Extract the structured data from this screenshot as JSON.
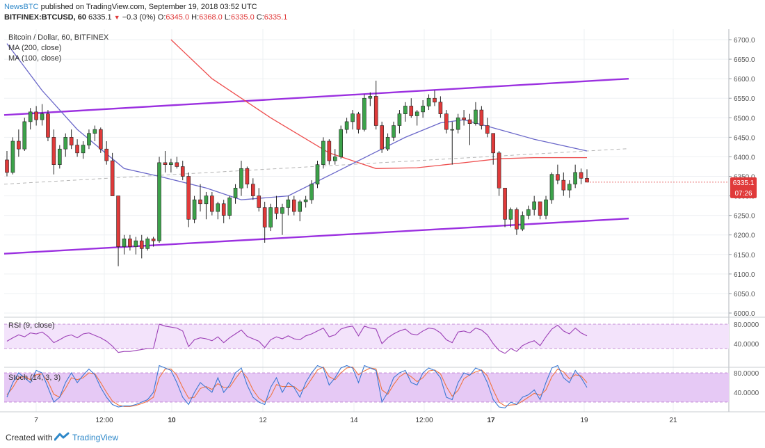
{
  "header": {
    "publisher": "NewsBTC",
    "published_text": "published on TradingView.com, September 19, 2018 03:52 UTC",
    "symbol": "BITFINEX:BTCUSD, 60",
    "last": "6335.1",
    "change": "−0.3 (0%)",
    "o_label": "O:",
    "o_value": "6345.0",
    "h_label": "H:",
    "h_value": "6368.0",
    "l_label": "L:",
    "l_value": "6335.0",
    "c_label": "C:",
    "c_value": "6335.1"
  },
  "legend": {
    "title": "Bitcoin / Dollar, 60, BITFINEX",
    "ma200": "MA (200, close)",
    "ma100": "MA (100, close)"
  },
  "price_badge": {
    "value": "6335.1",
    "timer": "07:26",
    "color": "#e03a3a"
  },
  "rsi_label": "RSI (9, close)",
  "stoch_label": "Stoch (14, 3, 3)",
  "footer": {
    "made": "Created with",
    "brand": "TradingView"
  },
  "colors": {
    "channel": "#9b30e0",
    "ma200": "#ee4d4d",
    "ma100": "#6a67c9",
    "up": "#3ca24a",
    "down": "#e03a3a",
    "rsi": "#9c3fb6",
    "stoch_k": "#3a78d3",
    "stoch_d": "#f07340"
  },
  "chart_data": {
    "type": "candlestick",
    "price_axis": {
      "ticks": [
        6000,
        6050,
        6100,
        6150,
        6200,
        6250,
        6300,
        6350,
        6400,
        6450,
        6500,
        6550,
        6600,
        6650,
        6700
      ],
      "labels": [
        "6000.0",
        "6050.0",
        "6100.0",
        "6150.0",
        "6200.0",
        "6250.0",
        "6300.0",
        "6350.0",
        "6400.0",
        "6450.0",
        "6500.0",
        "6550.0",
        "6600.0",
        "6650.0",
        "6700.0"
      ]
    },
    "time_axis": {
      "labels": [
        "7",
        "12:00",
        "10",
        "12",
        "14",
        "12:00",
        "17",
        "19",
        "21"
      ],
      "bold": [
        "10",
        "17"
      ]
    },
    "candles_ohlc": [
      [
        6392,
        6415,
        6350,
        6360
      ],
      [
        6360,
        6450,
        6355,
        6440
      ],
      [
        6440,
        6470,
        6400,
        6420
      ],
      [
        6420,
        6500,
        6415,
        6490
      ],
      [
        6490,
        6525,
        6470,
        6515
      ],
      [
        6515,
        6530,
        6480,
        6495
      ],
      [
        6495,
        6535,
        6480,
        6510
      ],
      [
        6510,
        6520,
        6440,
        6450
      ],
      [
        6450,
        6470,
        6355,
        6380
      ],
      [
        6380,
        6430,
        6370,
        6420
      ],
      [
        6420,
        6460,
        6400,
        6450
      ],
      [
        6450,
        6470,
        6420,
        6430
      ],
      [
        6430,
        6445,
        6400,
        6410
      ],
      [
        6410,
        6440,
        6395,
        6430
      ],
      [
        6430,
        6470,
        6420,
        6460
      ],
      [
        6460,
        6480,
        6440,
        6470
      ],
      [
        6470,
        6475,
        6410,
        6420
      ],
      [
        6420,
        6440,
        6380,
        6390
      ],
      [
        6390,
        6410,
        6330,
        6300
      ],
      [
        6300,
        6290,
        6120,
        6170
      ],
      [
        6170,
        6200,
        6150,
        6190
      ],
      [
        6190,
        6200,
        6160,
        6170
      ],
      [
        6170,
        6195,
        6150,
        6185
      ],
      [
        6185,
        6200,
        6140,
        6165
      ],
      [
        6165,
        6195,
        6160,
        6190
      ],
      [
        6190,
        6195,
        6170,
        6185
      ],
      [
        6185,
        6400,
        6180,
        6385
      ],
      [
        6385,
        6415,
        6360,
        6380
      ],
      [
        6380,
        6395,
        6360,
        6385
      ],
      [
        6385,
        6400,
        6370,
        6375
      ],
      [
        6375,
        6390,
        6340,
        6350
      ],
      [
        6350,
        6360,
        6220,
        6240
      ],
      [
        6240,
        6300,
        6230,
        6290
      ],
      [
        6290,
        6330,
        6260,
        6280
      ],
      [
        6280,
        6310,
        6240,
        6300
      ],
      [
        6300,
        6310,
        6250,
        6260
      ],
      [
        6260,
        6285,
        6240,
        6280
      ],
      [
        6280,
        6290,
        6230,
        6250
      ],
      [
        6250,
        6300,
        6240,
        6295
      ],
      [
        6295,
        6330,
        6280,
        6320
      ],
      [
        6320,
        6390,
        6300,
        6370
      ],
      [
        6370,
        6375,
        6320,
        6330
      ],
      [
        6330,
        6345,
        6290,
        6300
      ],
      [
        6300,
        6320,
        6260,
        6270
      ],
      [
        6270,
        6285,
        6180,
        6220
      ],
      [
        6220,
        6280,
        6210,
        6270
      ],
      [
        6270,
        6300,
        6240,
        6255
      ],
      [
        6255,
        6280,
        6200,
        6270
      ],
      [
        6270,
        6300,
        6250,
        6290
      ],
      [
        6290,
        6300,
        6250,
        6260
      ],
      [
        6260,
        6290,
        6235,
        6285
      ],
      [
        6285,
        6300,
        6270,
        6290
      ],
      [
        6290,
        6340,
        6280,
        6330
      ],
      [
        6330,
        6390,
        6320,
        6380
      ],
      [
        6380,
        6450,
        6370,
        6440
      ],
      [
        6440,
        6445,
        6380,
        6390
      ],
      [
        6390,
        6420,
        6380,
        6400
      ],
      [
        6400,
        6480,
        6395,
        6470
      ],
      [
        6470,
        6500,
        6460,
        6490
      ],
      [
        6490,
        6520,
        6470,
        6510
      ],
      [
        6510,
        6515,
        6460,
        6470
      ],
      [
        6470,
        6560,
        6465,
        6550
      ],
      [
        6550,
        6565,
        6530,
        6555
      ],
      [
        6555,
        6595,
        6470,
        6480
      ],
      [
        6480,
        6490,
        6410,
        6420
      ],
      [
        6420,
        6460,
        6415,
        6450
      ],
      [
        6450,
        6490,
        6440,
        6480
      ],
      [
        6480,
        6520,
        6460,
        6510
      ],
      [
        6510,
        6540,
        6490,
        6530
      ],
      [
        6530,
        6550,
        6500,
        6505
      ],
      [
        6505,
        6520,
        6480,
        6515
      ],
      [
        6515,
        6545,
        6500,
        6530
      ],
      [
        6530,
        6560,
        6520,
        6550
      ],
      [
        6550,
        6570,
        6530,
        6540
      ],
      [
        6540,
        6555,
        6500,
        6510
      ],
      [
        6510,
        6520,
        6460,
        6470
      ],
      [
        6470,
        6490,
        6380,
        6470
      ],
      [
        6470,
        6510,
        6460,
        6500
      ],
      [
        6500,
        6520,
        6480,
        6495
      ],
      [
        6495,
        6510,
        6430,
        6485
      ],
      [
        6485,
        6540,
        6480,
        6520
      ],
      [
        6520,
        6530,
        6470,
        6480
      ],
      [
        6480,
        6500,
        6450,
        6460
      ],
      [
        6460,
        6450,
        6380,
        6410
      ],
      [
        6410,
        6415,
        6300,
        6320
      ],
      [
        6320,
        6310,
        6220,
        6240
      ],
      [
        6240,
        6270,
        6220,
        6265
      ],
      [
        6265,
        6270,
        6200,
        6215
      ],
      [
        6215,
        6260,
        6210,
        6250
      ],
      [
        6250,
        6275,
        6240,
        6265
      ],
      [
        6265,
        6300,
        6250,
        6285
      ],
      [
        6285,
        6280,
        6240,
        6250
      ],
      [
        6250,
        6300,
        6240,
        6290
      ],
      [
        6290,
        6360,
        6280,
        6355
      ],
      [
        6355,
        6380,
        6330,
        6340
      ],
      [
        6340,
        6360,
        6300,
        6315
      ],
      [
        6315,
        6340,
        6295,
        6330
      ],
      [
        6330,
        6380,
        6320,
        6360
      ],
      [
        6360,
        6370,
        6330,
        6345
      ],
      [
        6345,
        6368,
        6335,
        6335.1
      ]
    ],
    "channel_upper": [
      [
        0,
        6507
      ],
      [
        100,
        6600
      ]
    ],
    "channel_lower": [
      [
        0,
        6152
      ],
      [
        100,
        6242
      ]
    ],
    "midline": [
      [
        0,
        6330
      ],
      [
        100,
        6421
      ]
    ],
    "ma200": [
      [
        28,
        6700
      ],
      [
        35,
        6600
      ],
      [
        45,
        6500
      ],
      [
        55,
        6410
      ],
      [
        63,
        6370
      ],
      [
        70,
        6372
      ],
      [
        78,
        6385
      ],
      [
        84,
        6395
      ],
      [
        90,
        6398
      ],
      [
        99,
        6398
      ]
    ],
    "ma100": [
      [
        0,
        6690
      ],
      [
        6,
        6570
      ],
      [
        12,
        6470
      ],
      [
        20,
        6370
      ],
      [
        26,
        6350
      ],
      [
        34,
        6320
      ],
      [
        40,
        6290
      ],
      [
        48,
        6300
      ],
      [
        56,
        6360
      ],
      [
        62,
        6405
      ],
      [
        68,
        6450
      ],
      [
        74,
        6487
      ],
      [
        78,
        6495
      ],
      [
        84,
        6470
      ],
      [
        90,
        6445
      ],
      [
        96,
        6425
      ],
      [
        99,
        6415
      ]
    ],
    "rsi": {
      "levels": [
        80,
        40
      ],
      "band": [
        80,
        30
      ],
      "values": [
        45,
        52,
        58,
        54,
        62,
        60,
        64,
        55,
        42,
        48,
        55,
        58,
        52,
        60,
        62,
        57,
        52,
        45,
        35,
        22,
        24,
        24,
        26,
        28,
        30,
        30,
        80,
        76,
        74,
        72,
        66,
        34,
        48,
        52,
        50,
        46,
        54,
        42,
        52,
        60,
        68,
        55,
        50,
        45,
        32,
        48,
        54,
        50,
        56,
        50,
        48,
        56,
        60,
        66,
        72,
        54,
        58,
        70,
        74,
        76,
        56,
        76,
        72,
        70,
        40,
        52,
        60,
        66,
        70,
        60,
        58,
        66,
        72,
        70,
        62,
        48,
        42,
        64,
        66,
        62,
        72,
        68,
        58,
        40,
        26,
        20,
        30,
        24,
        36,
        42,
        46,
        36,
        54,
        70,
        78,
        66,
        60,
        72,
        62,
        56
      ]
    },
    "stoch": {
      "levels": [
        80,
        40
      ],
      "band": [
        80,
        20
      ],
      "k": [
        30,
        60,
        80,
        70,
        60,
        85,
        80,
        50,
        20,
        30,
        60,
        80,
        60,
        75,
        88,
        76,
        50,
        30,
        15,
        10,
        12,
        12,
        15,
        20,
        25,
        40,
        95,
        90,
        85,
        60,
        30,
        15,
        40,
        60,
        50,
        40,
        70,
        40,
        55,
        80,
        90,
        55,
        30,
        20,
        15,
        50,
        70,
        40,
        60,
        50,
        30,
        60,
        80,
        95,
        90,
        55,
        70,
        90,
        95,
        90,
        60,
        95,
        90,
        85,
        20,
        40,
        70,
        80,
        85,
        60,
        55,
        80,
        90,
        85,
        70,
        30,
        25,
        60,
        80,
        75,
        90,
        85,
        60,
        25,
        10,
        8,
        20,
        15,
        30,
        35,
        45,
        25,
        60,
        90,
        95,
        70,
        60,
        85,
        70,
        50
      ],
      "d": [
        35,
        50,
        70,
        72,
        66,
        76,
        78,
        62,
        36,
        30,
        48,
        70,
        66,
        70,
        80,
        78,
        60,
        40,
        22,
        14,
        11,
        11,
        13,
        17,
        22,
        30,
        70,
        88,
        88,
        75,
        50,
        28,
        30,
        48,
        52,
        46,
        58,
        50,
        50,
        68,
        84,
        70,
        45,
        28,
        20,
        32,
        56,
        52,
        52,
        52,
        42,
        50,
        68,
        86,
        92,
        72,
        66,
        80,
        90,
        92,
        76,
        84,
        90,
        88,
        45,
        36,
        56,
        72,
        80,
        72,
        62,
        70,
        84,
        86,
        78,
        52,
        32,
        44,
        68,
        76,
        82,
        86,
        74,
        45,
        20,
        12,
        14,
        15,
        22,
        30,
        38,
        34,
        45,
        72,
        88,
        82,
        68,
        76,
        74,
        60
      ]
    }
  }
}
